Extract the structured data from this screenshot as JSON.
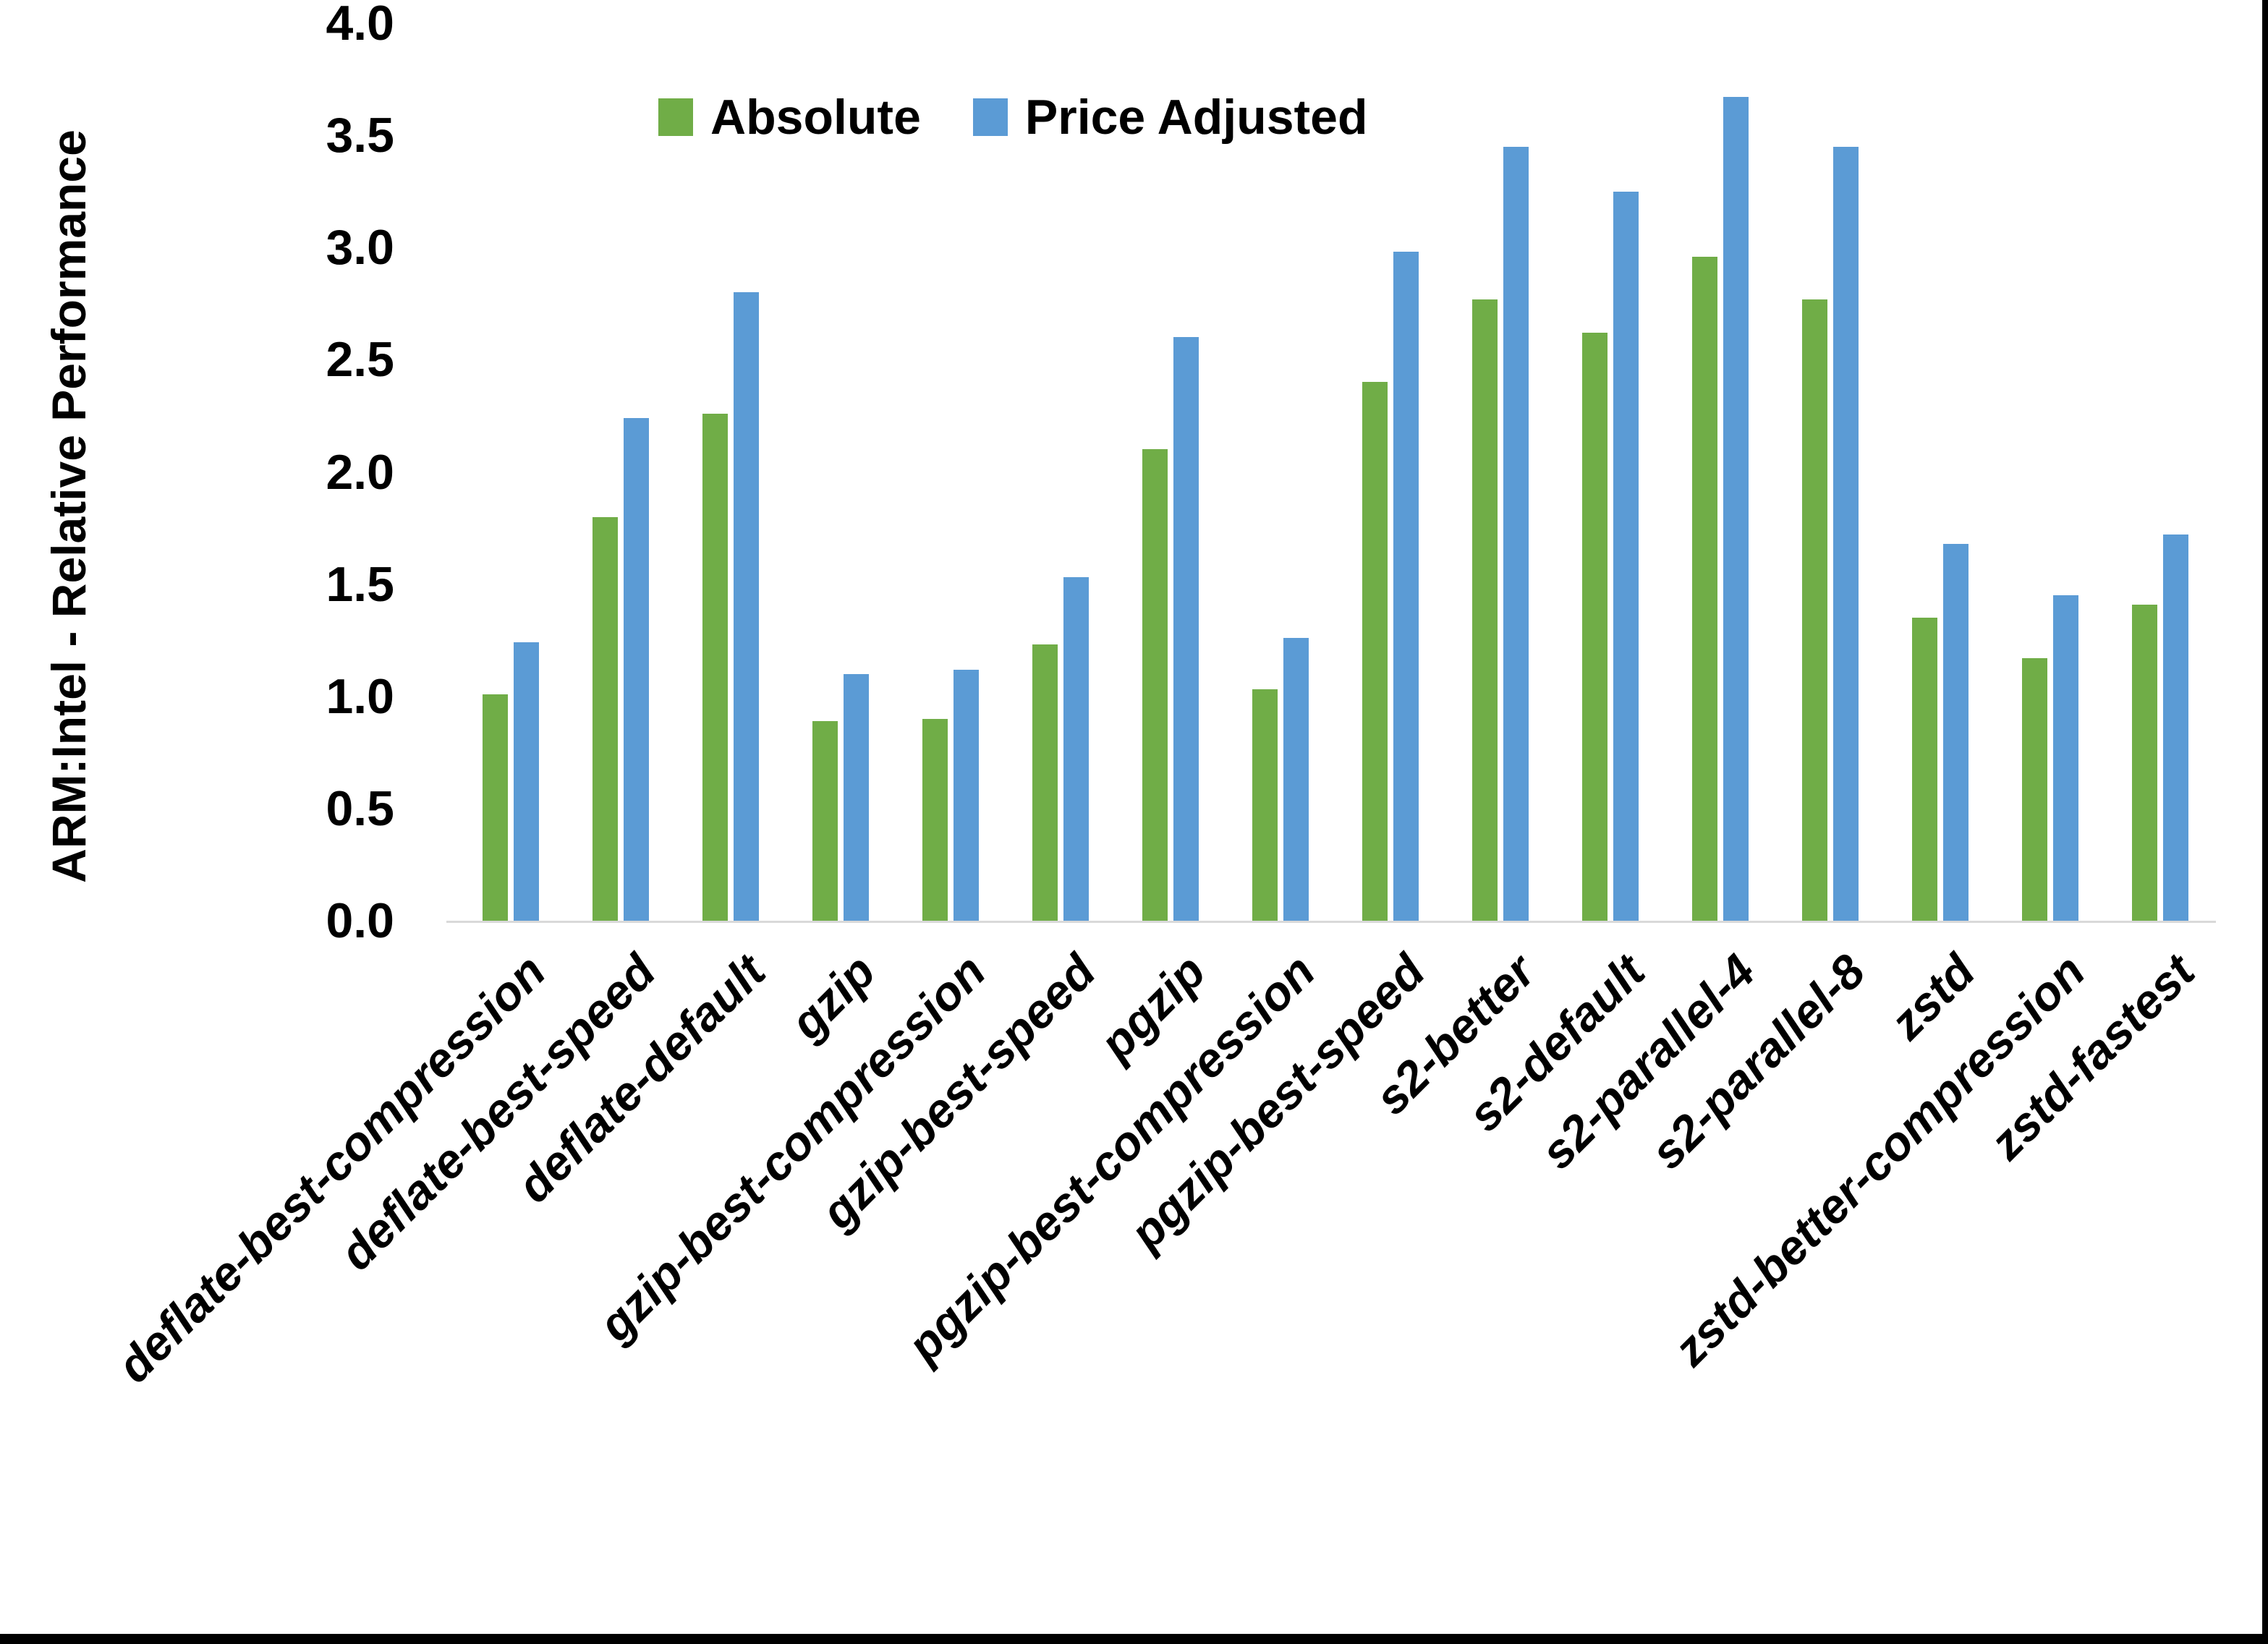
{
  "chart_data": {
    "type": "bar",
    "title": "",
    "ylabel": "ARM:Intel - Relative Performance",
    "xlabel": "",
    "ylim": [
      0.0,
      4.0
    ],
    "ytick_step": 0.5,
    "ytick_labels": [
      "0.0",
      "0.5",
      "1.0",
      "1.5",
      "2.0",
      "2.5",
      "3.0",
      "3.5",
      "4.0"
    ],
    "grid": false,
    "legend_position": "top-left-of-center",
    "categories": [
      "deflate-best-compression",
      "deflate-best-speed",
      "deflate-default",
      "gzip",
      "gzip-best-compression",
      "gzip-best-speed",
      "pgzip",
      "pgzip-best-compression",
      "pgzip-best-speed",
      "s2-better",
      "s2-default",
      "s2-parallel-4",
      "s2-parallel-8",
      "zstd",
      "zstd-better-compression",
      "zstd-fastest"
    ],
    "series": [
      {
        "name": "Absolute",
        "color": "#70AD47",
        "values": [
          1.01,
          1.8,
          2.26,
          0.89,
          0.9,
          1.23,
          2.1,
          1.03,
          2.4,
          2.77,
          2.62,
          2.96,
          2.77,
          1.35,
          1.17,
          1.41
        ]
      },
      {
        "name": "Price Adjusted",
        "color": "#5B9BD5",
        "values": [
          1.24,
          2.24,
          2.8,
          1.1,
          1.12,
          1.53,
          2.6,
          1.26,
          2.98,
          3.45,
          3.25,
          3.67,
          3.45,
          1.68,
          1.45,
          1.72
        ]
      }
    ]
  },
  "legend": {
    "absolute_label": "Absolute",
    "price_adjusted_label": "Price Adjusted"
  },
  "colors": {
    "absolute": "#70AD47",
    "price_adjusted": "#5B9BD5",
    "axis_line": "#d9d9d9",
    "text": "#000000",
    "frame": "#000000"
  }
}
